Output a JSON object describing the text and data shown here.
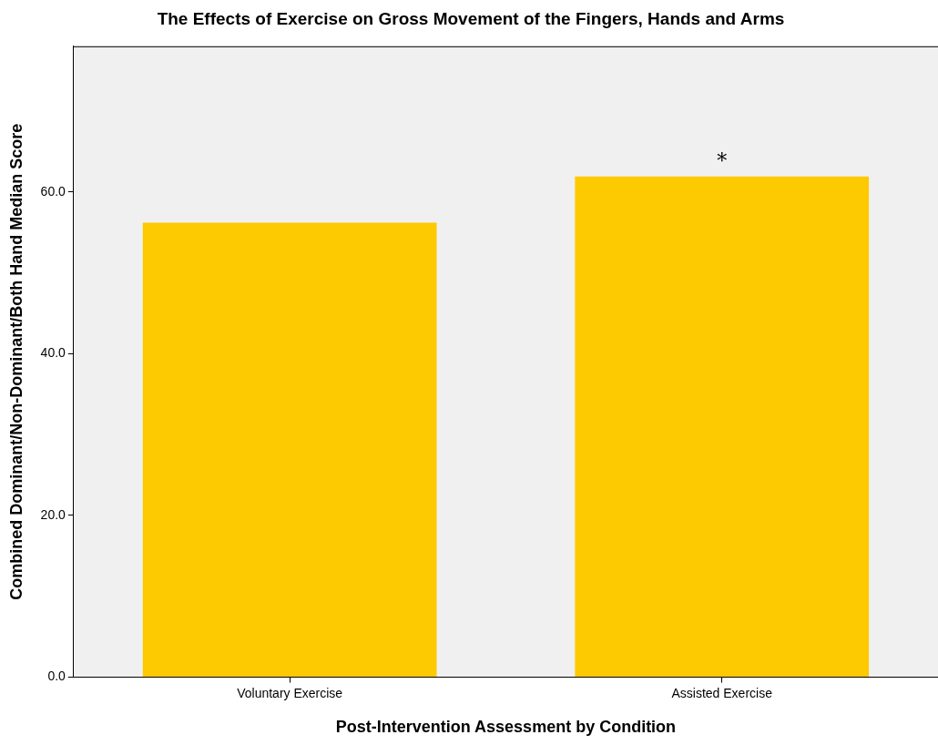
{
  "chart_data": {
    "type": "bar",
    "title": "The Effects of Exercise on Gross Movement of the Fingers, Hands and Arms",
    "xlabel": "Post-Intervention Assessment by Condition",
    "ylabel": "Combined Dominant/Non-Dominant/Both Hand Median Score",
    "categories": [
      "Voluntary Exercise",
      "Assisted Exercise"
    ],
    "values": [
      56.2,
      61.9
    ],
    "color": "#fdc900",
    "ylim": [
      0,
      78
    ],
    "yticks": [
      {
        "value": 0,
        "label": "0.0"
      },
      {
        "value": 20,
        "label": "20.0"
      },
      {
        "value": 40,
        "label": "40.0"
      },
      {
        "value": 60,
        "label": "60.0"
      }
    ],
    "grid": false,
    "legend": false,
    "annotations": [
      "*"
    ]
  }
}
